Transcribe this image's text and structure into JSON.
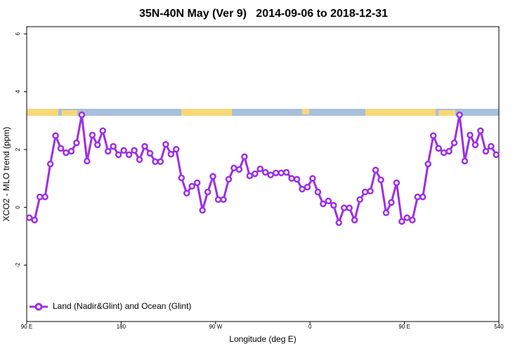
{
  "chart_data": {
    "type": "line",
    "title": "35N-40N May (Ver 9)   2014-09-06 to 2018-12-31",
    "x_label": "Longitude (deg E)",
    "y_label": "XCO2 - MLO trend (ppm)",
    "xlim": [
      90,
      540
    ],
    "ylim": [
      -3.95,
      6.25
    ],
    "xticks": [
      {
        "value": 90,
        "label": "90 E"
      },
      180,
      {
        "value": 270,
        "label": "90 W"
      },
      {
        "value": 360,
        "label": "0"
      },
      {
        "value": 450,
        "label": "90 E"
      },
      540
    ],
    "yticks": [
      -2,
      0,
      2,
      4,
      6
    ],
    "grid": false,
    "legend": "bottom-left",
    "x": [
      92.5,
      97.5,
      102.5,
      107.5,
      112.5,
      117.5,
      122.5,
      127.5,
      132.5,
      137.5,
      142.5,
      147.5,
      152.5,
      157.5,
      162.5,
      167.5,
      172.5,
      177.5,
      182.5,
      187.5,
      192.5,
      197.5,
      202.5,
      207.5,
      212.5,
      217.5,
      222.5,
      227.5,
      232.5,
      237.5,
      242.5,
      247.5,
      252.5,
      257.5,
      262.5,
      267.5,
      272.5,
      277.5,
      282.5,
      287.5,
      292.5,
      297.5,
      302.5,
      307.5,
      312.5,
      317.5,
      322.5,
      327.5,
      332.5,
      337.5,
      342.5,
      347.5,
      352.5,
      357.5,
      362.5,
      367.5,
      372.5,
      377.5,
      382.5,
      387.5,
      392.5,
      397.5,
      402.5,
      407.5,
      412.5,
      417.5,
      422.5,
      427.5,
      432.5,
      437.5,
      442.5,
      447.5,
      452.5,
      457.5,
      462.5,
      467.5,
      472.5,
      477.5,
      482.5,
      487.5,
      492.5,
      497.5,
      502.5,
      507.5,
      512.5,
      517.5,
      522.5,
      527.5,
      532.5,
      537.5
    ],
    "series": [
      {
        "name": "Land (Nadir&Glint) and Ocean (Glint)",
        "color": "#9b30e6",
        "values": [
          -0.36,
          -0.44,
          0.36,
          0.36,
          1.5,
          2.48,
          2.04,
          1.89,
          1.94,
          2.23,
          3.2,
          1.6,
          2.5,
          2.16,
          2.65,
          1.94,
          2.11,
          1.82,
          1.97,
          1.82,
          1.97,
          1.65,
          2.11,
          1.87,
          1.58,
          1.58,
          2.18,
          1.84,
          2.01,
          1.02,
          0.49,
          0.73,
          0.85,
          -0.1,
          0.53,
          1.07,
          0.27,
          0.27,
          0.97,
          1.36,
          1.31,
          1.75,
          1.09,
          1.16,
          1.33,
          1.21,
          1.12,
          1.19,
          1.19,
          1.21,
          1.0,
          0.97,
          0.63,
          0.7,
          1.0,
          0.53,
          0.12,
          0.22,
          0.07,
          -0.53,
          -0.02,
          -0.02,
          -0.44,
          0.27,
          0.53,
          0.56,
          1.29,
          0.95,
          -0.19,
          0.17,
          0.85,
          -0.49,
          -0.36,
          -0.44,
          0.36,
          0.36,
          1.5,
          2.48,
          2.04,
          1.89,
          1.94,
          2.23,
          3.2,
          1.6,
          2.5,
          2.16,
          2.65,
          1.94,
          2.11,
          1.82
        ]
      }
    ]
  }
}
